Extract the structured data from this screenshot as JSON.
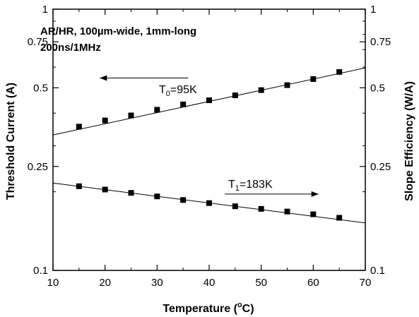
{
  "chart_data": {
    "type": "scatter",
    "xlabel": "Temperature (°C)",
    "xlabel_main": "Temperature (",
    "xlabel_sup": "o",
    "xlabel_tail": "C)",
    "ylabel_left": "Threshold Current (A)",
    "ylabel_right": "Slope Efficiency (W/A)",
    "xlim": [
      10,
      70
    ],
    "ylim": [
      0.1,
      1
    ],
    "yscale": "log",
    "x_ticks": [
      "10",
      "20",
      "30",
      "40",
      "50",
      "60",
      "70"
    ],
    "y_ticks": [
      "0.1",
      "0.25",
      "0.5",
      "0.75",
      "1"
    ],
    "y_tick_values": [
      0.1,
      0.25,
      0.5,
      0.75,
      1
    ],
    "annotation_lines": [
      "AR/HR, 100µm-wide, 1mm-long",
      "200ns/1MHz"
    ],
    "t0_label": {
      "prefix": "T",
      "sub": "0",
      "suffix": "=95K"
    },
    "t1_label": {
      "prefix": "T",
      "sub": "1",
      "suffix": "=183K"
    },
    "series": [
      {
        "axis": "left",
        "x": [
          15,
          20,
          25,
          30,
          35,
          40,
          45,
          50,
          55,
          60,
          65
        ],
        "y": [
          0.355,
          0.375,
          0.392,
          0.412,
          0.432,
          0.448,
          0.468,
          0.49,
          0.512,
          0.54,
          0.575
        ],
        "fit": {
          "x": [
            10,
            70
          ],
          "y": [
            0.33,
            0.596
          ]
        }
      },
      {
        "axis": "right",
        "x": [
          15,
          20,
          25,
          30,
          35,
          40,
          45,
          50,
          55,
          60,
          65
        ],
        "y": [
          0.21,
          0.204,
          0.198,
          0.192,
          0.186,
          0.181,
          0.176,
          0.172,
          0.168,
          0.164,
          0.159
        ],
        "fit": {
          "x": [
            10,
            70
          ],
          "y": [
            0.216,
            0.152
          ]
        }
      }
    ],
    "arrows": [
      {
        "from": [
          36,
          0.545
        ],
        "to": [
          19,
          0.545
        ]
      },
      {
        "from": [
          43,
          0.196
        ],
        "to": [
          61,
          0.196
        ]
      }
    ],
    "grid": false
  }
}
